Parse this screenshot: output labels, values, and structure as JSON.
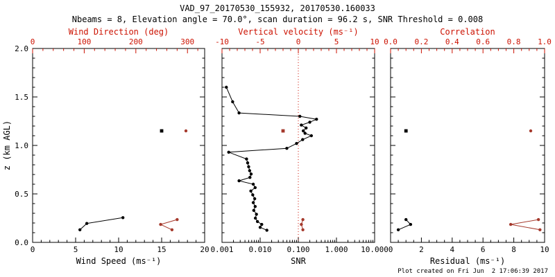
{
  "header": {
    "title": "VAD_97_20170530_155932, 20170530.160033",
    "subtitle": "Nbeams = 8, Elevation angle = 70.0°, scan duration = 96.2 s, SNR Threshold = 0.008"
  },
  "footer": {
    "created": "Plot created on Fri Jun  2 17:06:39 2017"
  },
  "colors": {
    "background": "#ffffff",
    "black": "#000000",
    "red_axis": "#cc1100",
    "red_data": "#a5392c"
  },
  "chart_data": {
    "type": "scatter",
    "y_axis": {
      "label": "z (km AGL)",
      "min": 0,
      "max": 2,
      "tick_values": [
        0.0,
        0.5,
        1.0,
        1.5,
        2.0
      ],
      "tick_labels": [
        "0.0",
        "0.5",
        "1.0",
        "1.5",
        "2.0"
      ],
      "minor_step": 0.1
    },
    "panels": [
      {
        "name": "wind-speed-direction",
        "bottom_axis": {
          "label": "Wind Speed (ms⁻¹)",
          "scale": "linear",
          "min": 0,
          "max": 20,
          "tick_values": [
            0,
            5,
            10,
            15,
            20
          ],
          "tick_labels": [
            "0",
            "5",
            "10",
            "15",
            "20"
          ],
          "minor_divs": 5,
          "color": "black"
        },
        "top_axis": {
          "label": "Wind Direction (deg)",
          "scale": "linear",
          "min": 0,
          "max": 333.3,
          "tick_values": [
            0,
            100,
            200,
            300
          ],
          "tick_labels": [
            "0",
            "100",
            "200",
            "300"
          ],
          "minor_divs": 5,
          "color": "red"
        },
        "series": [
          {
            "name": "wind-speed-profile",
            "axis": "bottom",
            "color": "black",
            "marker": "circle",
            "line": true,
            "points": [
              [
                5.5,
                0.13
              ],
              [
                6.3,
                0.195
              ],
              [
                10.5,
                0.255
              ]
            ]
          },
          {
            "name": "wind-speed-cloud-level",
            "axis": "bottom",
            "color": "black",
            "marker": "square",
            "line": false,
            "points": [
              [
                15.0,
                1.15
              ]
            ]
          },
          {
            "name": "wind-direction-profile",
            "axis": "top",
            "color": "red",
            "marker": "circle",
            "line": true,
            "points": [
              [
                270,
                0.13
              ],
              [
                248,
                0.185
              ],
              [
                280,
                0.235
              ]
            ]
          },
          {
            "name": "wind-direction-cloud-level",
            "axis": "top",
            "color": "red",
            "marker": "circle",
            "line": false,
            "points": [
              [
                297,
                1.15
              ]
            ]
          }
        ]
      },
      {
        "name": "snr-vertical-velocity",
        "bottom_axis": {
          "label": "SNR",
          "scale": "log",
          "min": 0.001,
          "max": 10,
          "tick_values": [
            0.001,
            0.01,
            0.1,
            1,
            10
          ],
          "tick_labels": [
            "0.001",
            "0.010",
            "0.100",
            "1.000",
            "10.000"
          ],
          "minor_divs": 0,
          "color": "black"
        },
        "top_axis": {
          "label": "Vertical velocity (ms⁻¹)",
          "scale": "linear",
          "min": -10,
          "max": 10,
          "tick_values": [
            -10,
            -5,
            0,
            5,
            10
          ],
          "tick_labels": [
            "-10",
            "-5",
            "0",
            "5",
            "10"
          ],
          "minor_divs": 5,
          "color": "red"
        },
        "reflines": [
          {
            "axis": "top",
            "value": 0,
            "style": "dotted",
            "color": "red"
          }
        ],
        "series": [
          {
            "name": "snr-profile",
            "axis": "bottom",
            "color": "black",
            "marker": "circle",
            "line": true,
            "points": [
              [
                0.015,
                0.125
              ],
              [
                0.01,
                0.155
              ],
              [
                0.011,
                0.185
              ],
              [
                0.0085,
                0.215
              ],
              [
                0.0075,
                0.25
              ],
              [
                0.008,
                0.29
              ],
              [
                0.0068,
                0.33
              ],
              [
                0.0074,
                0.37
              ],
              [
                0.0066,
                0.41
              ],
              [
                0.0072,
                0.45
              ],
              [
                0.0064,
                0.49
              ],
              [
                0.0057,
                0.53
              ],
              [
                0.0074,
                0.565
              ],
              [
                0.0066,
                0.6
              ],
              [
                0.0028,
                0.635
              ],
              [
                0.0054,
                0.67
              ],
              [
                0.0058,
                0.705
              ],
              [
                0.0053,
                0.74
              ],
              [
                0.005,
                0.78
              ],
              [
                0.0047,
                0.82
              ],
              [
                0.0044,
                0.86
              ],
              [
                0.0015,
                0.93
              ],
              [
                0.05,
                0.97
              ],
              [
                0.09,
                1.02
              ],
              [
                0.13,
                1.06
              ],
              [
                0.22,
                1.1
              ],
              [
                0.15,
                1.125
              ],
              [
                0.135,
                1.15
              ],
              [
                0.16,
                1.18
              ],
              [
                0.12,
                1.21
              ],
              [
                0.2,
                1.24
              ],
              [
                0.3,
                1.27
              ],
              [
                0.11,
                1.3
              ],
              [
                0.0028,
                1.335
              ],
              [
                0.0019,
                1.45
              ],
              [
                0.0013,
                1.6
              ]
            ]
          },
          {
            "name": "vertical-velocity-profile",
            "axis": "top",
            "color": "red",
            "marker": "circle",
            "line": true,
            "points": [
              [
                0.6,
                0.13
              ],
              [
                0.4,
                0.185
              ],
              [
                0.6,
                0.235
              ]
            ]
          },
          {
            "name": "vertical-velocity-cloud-level",
            "axis": "top",
            "color": "red",
            "marker": "square",
            "line": false,
            "points": [
              [
                -2.0,
                1.15
              ]
            ]
          }
        ]
      },
      {
        "name": "residual-correlation",
        "bottom_axis": {
          "label": "Residual (ms⁻¹)",
          "scale": "linear",
          "min": 0,
          "max": 10,
          "tick_values": [
            0,
            2,
            4,
            6,
            8,
            10
          ],
          "tick_labels": [
            "0",
            "2",
            "4",
            "6",
            "8",
            "10"
          ],
          "minor_divs": 4,
          "color": "black"
        },
        "top_axis": {
          "label": "Correlation",
          "scale": "linear",
          "min": 0,
          "max": 1,
          "tick_values": [
            0.0,
            0.2,
            0.4,
            0.6,
            0.8,
            1.0
          ],
          "tick_labels": [
            "0.0",
            "0.2",
            "0.4",
            "0.6",
            "0.8",
            "1.0"
          ],
          "minor_divs": 4,
          "color": "red"
        },
        "series": [
          {
            "name": "residual-profile",
            "axis": "bottom",
            "color": "black",
            "marker": "circle",
            "line": true,
            "points": [
              [
                0.5,
                0.13
              ],
              [
                1.3,
                0.185
              ],
              [
                1.0,
                0.235
              ]
            ]
          },
          {
            "name": "residual-cloud-level",
            "axis": "bottom",
            "color": "black",
            "marker": "square",
            "line": false,
            "points": [
              [
                1.0,
                1.15
              ]
            ]
          },
          {
            "name": "correlation-profile",
            "axis": "top",
            "color": "red",
            "marker": "circle",
            "line": true,
            "points": [
              [
                0.97,
                0.13
              ],
              [
                0.78,
                0.185
              ],
              [
                0.96,
                0.235
              ]
            ]
          },
          {
            "name": "correlation-cloud-level",
            "axis": "top",
            "color": "red",
            "marker": "circle",
            "line": false,
            "points": [
              [
                0.91,
                1.15
              ]
            ]
          }
        ]
      }
    ]
  }
}
